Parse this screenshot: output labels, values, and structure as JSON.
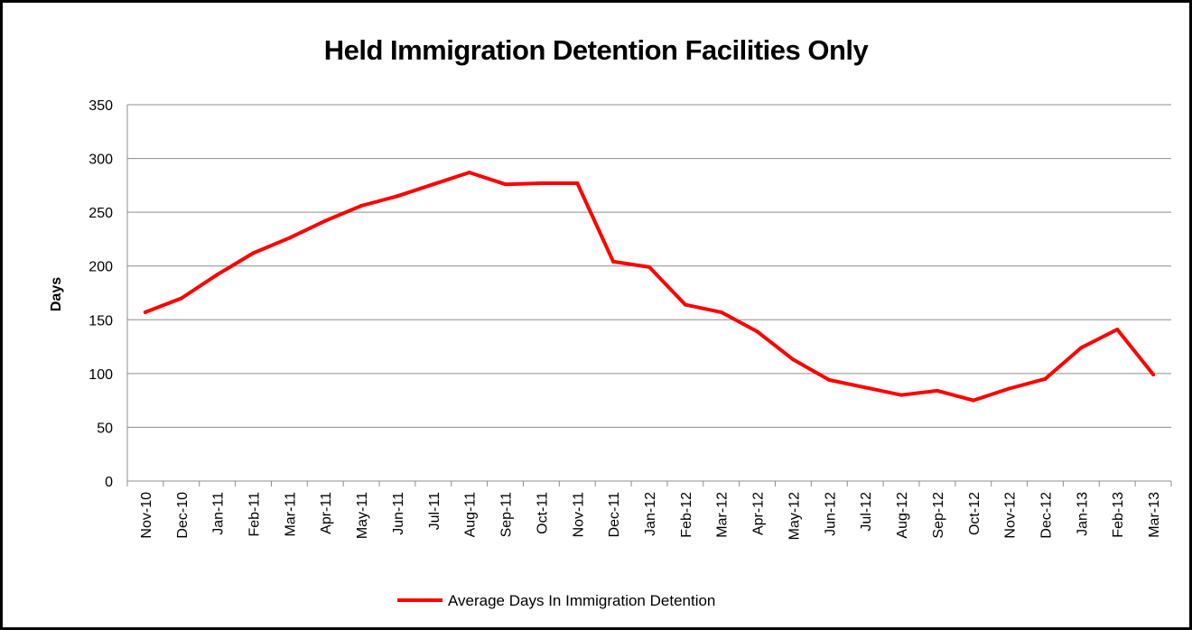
{
  "chart_data": {
    "type": "line",
    "title": "Held Immigration Detention Facilities Only",
    "xlabel": "",
    "ylabel": "Days",
    "ylim": [
      0,
      350
    ],
    "yticks": [
      0,
      50,
      100,
      150,
      200,
      250,
      300,
      350
    ],
    "grid": true,
    "legend_position": "bottom",
    "categories": [
      "Nov-10",
      "Dec-10",
      "Jan-11",
      "Feb-11",
      "Mar-11",
      "Apr-11",
      "May-11",
      "Jun-11",
      "Jul-11",
      "Aug-11",
      "Sep-11",
      "Oct-11",
      "Nov-11",
      "Dec-11",
      "Jan-12",
      "Feb-12",
      "Mar-12",
      "Apr-12",
      "May-12",
      "Jun-12",
      "Jul-12",
      "Aug-12",
      "Sep-12",
      "Oct-12",
      "Nov-12",
      "Dec-12",
      "Jan-13",
      "Feb-13",
      "Mar-13"
    ],
    "series": [
      {
        "name": "Average Days In Immigration Detention",
        "color": "#ff0000",
        "values": [
          157,
          170,
          192,
          212,
          226,
          242,
          256,
          265,
          276,
          287,
          276,
          277,
          277,
          204,
          199,
          164,
          157,
          139,
          113,
          94,
          87,
          80,
          84,
          75,
          86,
          95,
          124,
          141,
          99
        ]
      }
    ]
  }
}
